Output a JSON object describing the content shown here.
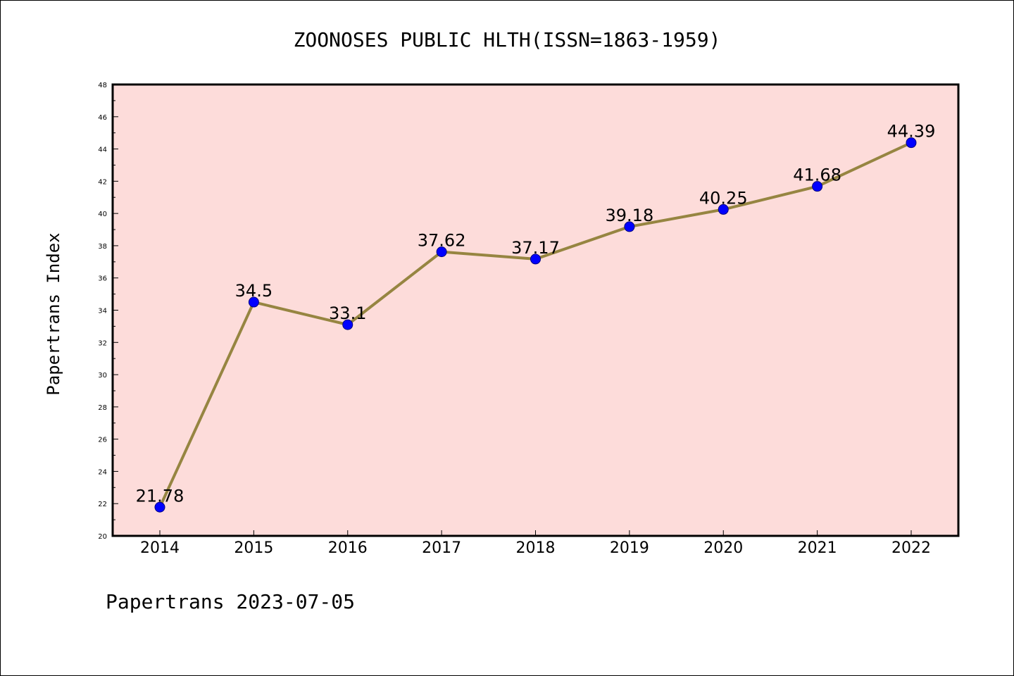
{
  "chart_data": {
    "type": "line",
    "title": "ZOONOSES PUBLIC HLTH(ISSN=1863-1959)",
    "xlabel": "",
    "ylabel": "Papertrans Index",
    "categories": [
      "2014",
      "2015",
      "2016",
      "2017",
      "2018",
      "2019",
      "2020",
      "2021",
      "2022"
    ],
    "series": [
      {
        "values": [
          21.78,
          34.5,
          33.1,
          37.62,
          37.17,
          39.18,
          40.25,
          41.68,
          44.39
        ],
        "data_labels": [
          "21.78",
          "34.5",
          "33.1",
          "37.62",
          "37.17",
          "39.18",
          "40.25",
          "41.68",
          "44.39"
        ]
      }
    ],
    "ylim": [
      20,
      48
    ],
    "yticks": [
      "20",
      "22",
      "24",
      "26",
      "28",
      "30",
      "32",
      "34",
      "36",
      "38",
      "40",
      "42",
      "44",
      "46",
      "48"
    ],
    "grid": false,
    "legend": "none",
    "colors": {
      "plot_background": "#FDDCDA",
      "line": "#968541",
      "marker": "#0000FF",
      "axes": "#000000"
    }
  },
  "footer": "Papertrans 2023-07-05"
}
